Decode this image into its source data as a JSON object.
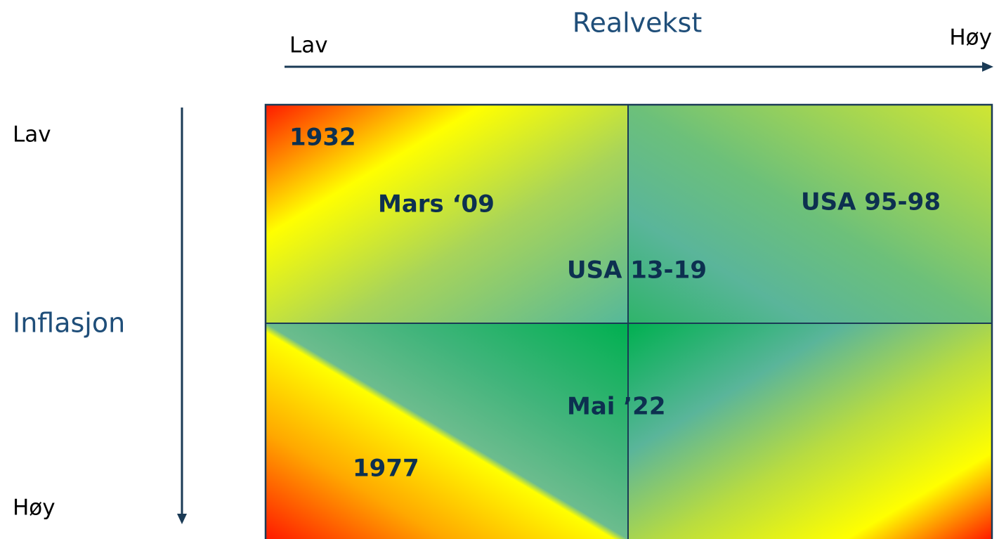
{
  "x_axis": {
    "title": "Realvekst",
    "low": "Lav",
    "high": "Høy"
  },
  "y_axis": {
    "title": "Inflasjon",
    "low": "Lav",
    "high": "Høy"
  },
  "labels": [
    "1932",
    "Mars ‘09",
    "USA 95-98",
    "USA 13-19",
    "Mai ’22",
    "1977"
  ]
}
